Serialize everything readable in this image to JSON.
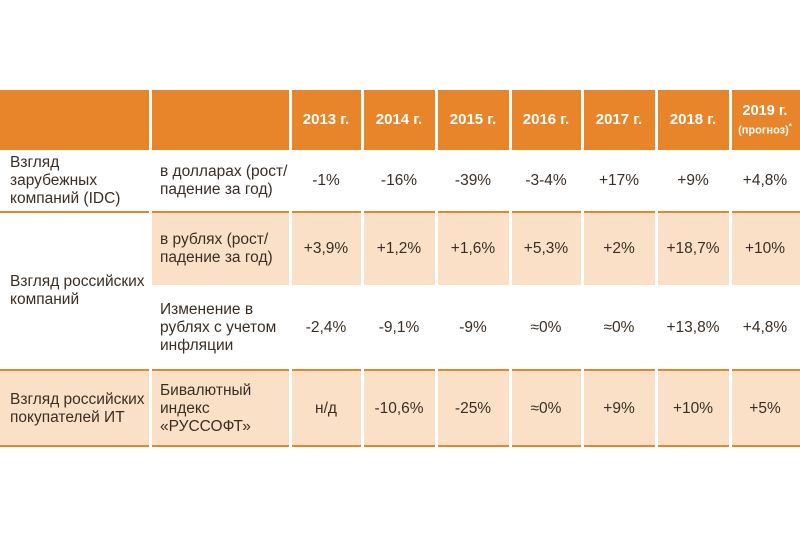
{
  "headers": {
    "col1": "",
    "col2": "",
    "years": [
      "2013 г.",
      "2014 г.",
      "2015 г.",
      "2016 г.",
      "2017 г.",
      "2018 г."
    ],
    "forecast_year": "2019 г.",
    "forecast_note": "(прогноз)",
    "forecast_mark": "*"
  },
  "rows": [
    {
      "group": "Взгляд зарубежных компаний (IDC)",
      "metric": "в долларах (рост/падение за год)",
      "values": [
        "-1%",
        "-16%",
        "-39%",
        "-3-4%",
        "+17%",
        "+9%",
        "+4,8%"
      ]
    },
    {
      "group": "Взгляд российских компаний",
      "metric": "в рублях (рост/падение за год)",
      "values": [
        "+3,9%",
        "+1,2%",
        "+1,6%",
        "+5,3%",
        "+2%",
        "+18,7%",
        "+10%"
      ]
    },
    {
      "group": "",
      "metric": "Изменение в рублях с учетом инфляции",
      "values": [
        "-2,4%",
        "-9,1%",
        "-9%",
        "≈0%",
        "≈0%",
        "+13,8%",
        "+4,8%"
      ]
    },
    {
      "group": "Взгляд российских покупателей ИТ",
      "metric": "Бивалютный индекс «РУССОФТ»",
      "values": [
        "н/д",
        "-10,6%",
        "-25%",
        "≈0%",
        "+9%",
        "+10%",
        "+5%"
      ]
    }
  ],
  "colors": {
    "header_orange": "#e8852b",
    "peach": "#fbe0c8",
    "text": "#3a2e24"
  }
}
